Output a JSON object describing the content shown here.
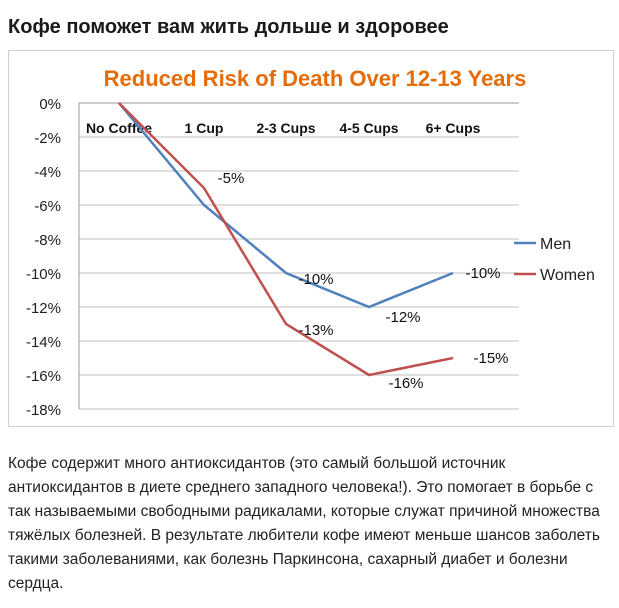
{
  "heading": "Кофе поможет вам жить дольше и здоровее",
  "article_text": "Кофе содержит много антиоксидантов (это самый большой источник антиоксидантов в диете среднего западного человека!). Это помогает в борьбе с так называемыми свободными радикалами, которые служат причиной множества тяжёлых болезней. В результате любители кофе имеют меньше шансов заболеть такими заболеваниями, как болезнь Паркинсона, сахарный диабет и болезни сердца.",
  "chart_data": {
    "type": "line",
    "title": "Reduced Risk of Death Over 12-13 Years",
    "categories": [
      "No Coffee",
      "1 Cup",
      "2-3 Cups",
      "4-5 Cups",
      "6+ Cups"
    ],
    "series": [
      {
        "name": "Men",
        "values": [
          0,
          -6,
          -10,
          -12,
          -10
        ],
        "labels": [
          "",
          "",
          "-10%",
          "-12%",
          "-10%"
        ],
        "color": "#4f81bd"
      },
      {
        "name": "Women",
        "values": [
          0,
          -5,
          -13,
          -16,
          -15
        ],
        "labels": [
          "",
          "-5%",
          "-13%",
          "-16%",
          "-15%"
        ],
        "color": "#c0504d"
      }
    ],
    "yticks": [
      "0%",
      "-2%",
      "-4%",
      "-6%",
      "-8%",
      "-10%",
      "-12%",
      "-14%",
      "-16%",
      "-18%"
    ],
    "ylim": [
      -18,
      0
    ],
    "grid": true,
    "legend": "right",
    "title_color": "#e46c0a"
  }
}
